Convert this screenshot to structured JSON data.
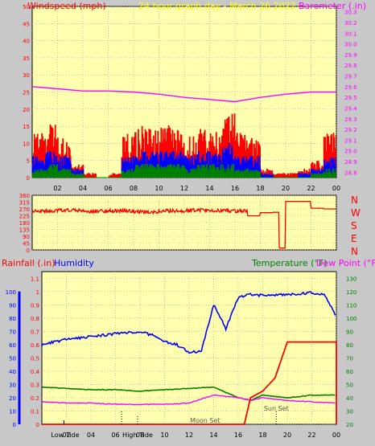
{
  "header": {
    "left_label": "Windspeed (mph)",
    "center_title": "24 hour graph day - March 26 2022",
    "right_label": "Barometer (.in)"
  },
  "bottom_header": {
    "rainfall_label": "Rainfall (.in)",
    "humidity_label": "Humidity",
    "temperature_label": "Temperature (°F)",
    "dewpoint_label": "Dew Point (°F)"
  },
  "x_ticks": [
    "02",
    "04",
    "06",
    "08",
    "10",
    "12",
    "14",
    "16",
    "18",
    "20",
    "22",
    "00"
  ],
  "events": {
    "sun_set": "Sun Set",
    "moon_set": "Moon Set",
    "low_tide": "Low Tide",
    "high_tide": "High Tide"
  },
  "chart_data": [
    {
      "type": "line",
      "title": "24 hour graph day - March 26 2022",
      "x_unit": "hour",
      "y_left": {
        "label": "Windspeed (mph)",
        "ticks": [
          0,
          5,
          10,
          15,
          20,
          25,
          30,
          35,
          40,
          45,
          50
        ],
        "ylim": [
          0,
          50
        ]
      },
      "y_right": {
        "label": "Barometer (.in)",
        "ticks": [
          "28.8",
          "28.9",
          "29.0",
          "29.1",
          "29.2",
          "29.3",
          "29.4",
          "29.5",
          "29.6",
          "29.7",
          "29.8",
          "29.9",
          "30.0",
          "30.1",
          "30.2",
          "30.3"
        ],
        "ylim": [
          28.75,
          30.35
        ]
      },
      "series": [
        {
          "name": "Gust",
          "color": "#ff0000",
          "x": [
            1,
            2,
            3,
            4,
            5,
            6,
            7,
            8,
            9,
            10,
            11,
            12,
            13,
            14,
            15,
            16,
            17,
            18,
            19,
            20,
            21,
            22,
            23,
            24
          ],
          "values": [
            10,
            12,
            9,
            3,
            1,
            0,
            1,
            10,
            12,
            11,
            12,
            11,
            10,
            11,
            12,
            15,
            10,
            9,
            2,
            1,
            1,
            2,
            4,
            10
          ]
        },
        {
          "name": "Average",
          "color": "#0000ff",
          "x": [
            1,
            2,
            3,
            4,
            5,
            6,
            7,
            8,
            9,
            10,
            11,
            12,
            13,
            14,
            15,
            16,
            17,
            18,
            19,
            20,
            21,
            22,
            23,
            24
          ],
          "values": [
            5,
            6,
            5,
            2,
            0,
            0,
            0,
            5,
            6,
            6,
            6,
            6,
            5,
            6,
            6,
            8,
            5,
            5,
            1,
            0,
            0,
            1,
            2,
            5
          ]
        },
        {
          "name": "Minimum",
          "color": "#008000",
          "x": [
            1,
            2,
            3,
            4,
            5,
            6,
            7,
            8,
            9,
            10,
            11,
            12,
            13,
            14,
            15,
            16,
            17,
            18,
            19,
            20,
            21,
            22,
            23,
            24
          ],
          "values": [
            2,
            3,
            2,
            1,
            0,
            0,
            0,
            2,
            3,
            3,
            3,
            3,
            2,
            3,
            3,
            3,
            2,
            2,
            0,
            0,
            0,
            0,
            1,
            2
          ]
        },
        {
          "name": "Barometer",
          "color": "#ff00ff",
          "axis": "right",
          "x": [
            0,
            2,
            4,
            6,
            8,
            10,
            12,
            14,
            16,
            17,
            18,
            20,
            22,
            24
          ],
          "values": [
            29.6,
            29.58,
            29.56,
            29.56,
            29.55,
            29.53,
            29.5,
            29.48,
            29.46,
            29.48,
            29.5,
            29.53,
            29.55,
            29.55
          ]
        }
      ]
    },
    {
      "type": "line",
      "title": "",
      "y_left": {
        "ticks": [
          0,
          45,
          90,
          135,
          180,
          225,
          270,
          315,
          360
        ],
        "ylim": [
          0,
          360
        ]
      },
      "y_right": {
        "ticks": [
          "N",
          "W",
          "S",
          "E",
          "N"
        ]
      },
      "series": [
        {
          "name": "Wind Direction",
          "color": "#ff0000",
          "x": [
            0,
            2,
            4,
            6,
            8,
            10,
            12,
            14,
            16,
            17,
            18,
            19,
            19.5,
            20,
            21,
            22,
            23,
            24
          ],
          "values": [
            255,
            262,
            255,
            258,
            252,
            258,
            262,
            258,
            258,
            225,
            245,
            248,
            12,
            320,
            320,
            275,
            270,
            268
          ]
        }
      ]
    },
    {
      "type": "line",
      "title": "",
      "y_left": {
        "label": "Rainfall (.in)",
        "ticks": [
          "0",
          "0.1",
          "0.2",
          "0.3",
          "0.4",
          "0.5",
          "0.6",
          "0.7",
          "0.8",
          "0.9",
          "1",
          "1.1"
        ],
        "ylim": [
          0,
          1.15
        ]
      },
      "y_humidity": {
        "label": "Humidity",
        "ticks": [
          0,
          10,
          20,
          30,
          40,
          50,
          60,
          70,
          80,
          90,
          100
        ],
        "ylim": [
          0,
          100
        ]
      },
      "y_right": {
        "label": "Temperature (°F)",
        "ticks": [
          20,
          30,
          40,
          50,
          60,
          70,
          80,
          90,
          100,
          110,
          120,
          130
        ],
        "ylim": [
          20,
          135
        ]
      },
      "series": [
        {
          "name": "Humidity",
          "color": "#0000ff",
          "axis": "humidity",
          "x": [
            0,
            2,
            4,
            6,
            8,
            9,
            10,
            11,
            12,
            13,
            14,
            15,
            16,
            17,
            18,
            20,
            22,
            23,
            24
          ],
          "values": [
            60,
            64,
            66,
            68,
            70,
            67,
            62,
            60,
            54,
            55,
            90,
            72,
            95,
            98,
            97,
            98,
            99,
            98,
            81
          ]
        },
        {
          "name": "Temperature",
          "color": "#008000",
          "axis": "right",
          "x": [
            0,
            2,
            4,
            6,
            8,
            10,
            12,
            14,
            16,
            17,
            18,
            20,
            22,
            24
          ],
          "values": [
            48,
            47,
            46,
            46,
            45,
            46,
            47,
            48,
            40,
            38,
            42,
            40,
            42,
            42
          ]
        },
        {
          "name": "Dew Point",
          "color": "#ff00ff",
          "axis": "right",
          "x": [
            0,
            2,
            4,
            6,
            8,
            10,
            12,
            14,
            16,
            17,
            18,
            20,
            22,
            24
          ],
          "values": [
            37,
            36,
            36,
            35,
            35,
            35,
            36,
            42,
            40,
            38,
            40,
            38,
            37,
            36
          ]
        },
        {
          "name": "Rainfall",
          "color": "#ff0000",
          "axis": "left",
          "x": [
            0,
            16.5,
            17,
            18,
            19,
            20,
            21,
            22,
            23,
            24
          ],
          "values": [
            0,
            0,
            0.2,
            0.25,
            0.35,
            0.62,
            0.62,
            0.62,
            0.62,
            0.62
          ]
        }
      ]
    }
  ]
}
